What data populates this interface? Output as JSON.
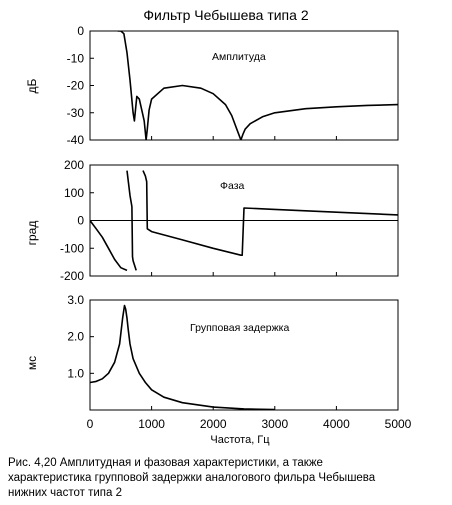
{
  "figure": {
    "title": "Фильтр Чебышева типа 2",
    "xlabel": "Частота, Гц",
    "caption_lines": [
      "Рис. 4,20 Амплитудная и фазовая характеристики, а также",
      "характеристика групповой задержки аналогового фильра Чебышева",
      "нижних частот типа 2"
    ]
  },
  "chart_data": [
    {
      "type": "line",
      "annotation": "Амплитуда",
      "ylabel": "дБ",
      "xlim": [
        0,
        5000
      ],
      "ylim": [
        -40,
        0
      ],
      "y_ticks": [
        "0",
        "-10",
        "-20",
        "-30",
        "-40"
      ],
      "y_tick_values": [
        0,
        -10,
        -20,
        -30,
        -40
      ],
      "x": [
        450,
        500,
        550,
        600,
        650,
        700,
        720,
        760,
        800,
        850,
        880,
        910,
        930,
        960,
        1000,
        1200,
        1500,
        1800,
        2000,
        2200,
        2300,
        2400,
        2450,
        2480,
        2520,
        2600,
        2800,
        3000,
        3500,
        4000,
        4500,
        5000
      ],
      "y": [
        0,
        0,
        -1,
        -8,
        -18,
        -30,
        -33,
        -24,
        -25,
        -30,
        -33,
        -40,
        -36,
        -29,
        -25,
        -21,
        -20,
        -21,
        -23,
        -27,
        -31,
        -37,
        -40,
        -38,
        -36,
        -34,
        -31.5,
        -30,
        -28.5,
        -27.8,
        -27.3,
        -27
      ]
    },
    {
      "type": "line",
      "annotation": "Фаза",
      "ylabel": "град",
      "xlim": [
        0,
        5000
      ],
      "ylim": [
        -200,
        200
      ],
      "y_ticks": [
        "200",
        "100",
        "0",
        "-100",
        "-200"
      ],
      "y_tick_values": [
        200,
        100,
        0,
        -100,
        -200
      ],
      "series": [
        {
          "x": [
            0,
            100,
            200,
            300,
            400,
            500,
            600
          ],
          "y": [
            0,
            -30,
            -60,
            -100,
            -140,
            -170,
            -180
          ]
        },
        {
          "x": [
            600,
            650,
            680,
            690,
            700,
            750
          ],
          "y": [
            180,
            90,
            50,
            -130,
            -145,
            -180
          ]
        },
        {
          "x": [
            860,
            900,
            920,
            930,
            1000,
            1500,
            2000,
            2450,
            2470,
            2500,
            3000,
            4000,
            5000
          ],
          "y": [
            180,
            160,
            140,
            -30,
            -40,
            -70,
            -100,
            -125,
            -125,
            45,
            40,
            30,
            20
          ]
        }
      ]
    },
    {
      "type": "line",
      "annotation": "Групповая задержка",
      "ylabel": "мс",
      "xlim": [
        0,
        5000
      ],
      "ylim": [
        0,
        3.0
      ],
      "y_ticks": [
        "3.0",
        "2.0",
        "1.0"
      ],
      "y_tick_values": [
        3.0,
        2.0,
        1.0
      ],
      "x": [
        0,
        100,
        200,
        300,
        400,
        480,
        530,
        560,
        580,
        600,
        620,
        650,
        700,
        800,
        900,
        1000,
        1200,
        1500,
        2000,
        2500,
        3000
      ],
      "y": [
        0.75,
        0.78,
        0.85,
        1.0,
        1.3,
        1.8,
        2.5,
        2.85,
        2.75,
        2.5,
        2.2,
        1.8,
        1.4,
        1.0,
        0.75,
        0.55,
        0.35,
        0.2,
        0.08,
        0.03,
        0.01
      ]
    }
  ],
  "x_ticks": [
    "0",
    "1000",
    "2000",
    "3000",
    "4000",
    "5000"
  ],
  "x_tick_values": [
    0,
    1000,
    2000,
    3000,
    4000,
    5000
  ]
}
